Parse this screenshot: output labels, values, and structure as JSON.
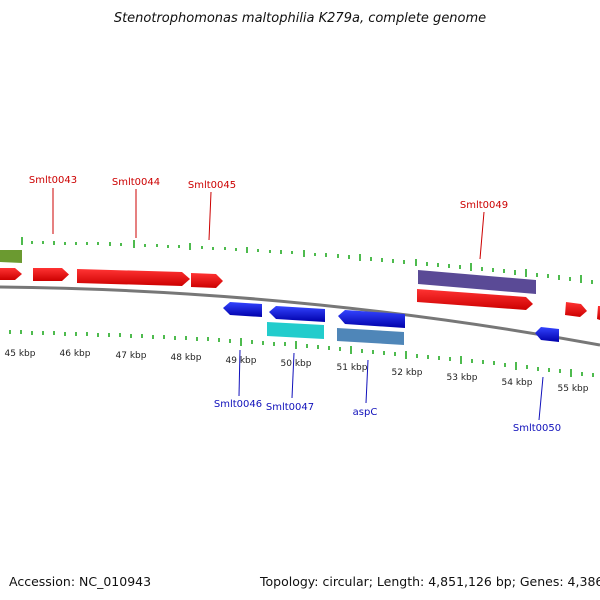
{
  "title": "Stenotrophomonas maltophilia K279a, complete genome",
  "colors": {
    "forward": "#ee0000",
    "reverse": "#0000dd",
    "tick": "#22aa22",
    "backbone": "#777777",
    "label_forward": "#cc0000",
    "label_reverse": "#1111bb"
  },
  "scale_labels": [
    "45 kbp",
    "46 kbp",
    "47 kbp",
    "48 kbp",
    "49 kbp",
    "50 kbp",
    "51 kbp",
    "52 kbp",
    "53 kbp",
    "54 kbp",
    "55 kbp"
  ],
  "gene_labels": {
    "forward": [
      "Smlt0043",
      "Smlt0044",
      "Smlt0045",
      "Smlt0049"
    ],
    "reverse": [
      "Smlt0046",
      "Smlt0047",
      "aspC",
      "Smlt0050"
    ]
  },
  "feature_colors": [
    "#ee1111",
    "#1122dd",
    "#5a4a96",
    "#22cccc",
    "#4f86b8",
    "#6b9a30"
  ],
  "footer": {
    "accession": "Accession: NC_010943",
    "topology": "Topology: circular; Length: 4,851,126 bp; Genes: 4,386"
  }
}
